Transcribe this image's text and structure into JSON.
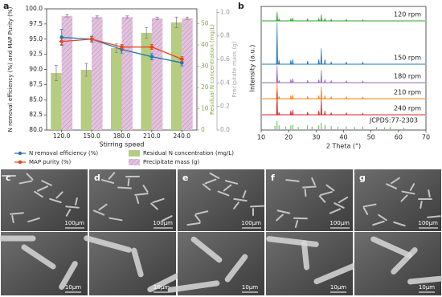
{
  "chart_data": [
    {
      "type": "combo",
      "panel_label": "a",
      "categories": [
        "120.0",
        "150.0",
        "180.0",
        "210.0",
        "240.0"
      ],
      "xlabel": "Stirring speed",
      "ylabel": "N removal efficiency (%) and MAP Purity (%)",
      "y2label": "Residual N concentration (mg/L)",
      "y3label": "Precipitate mass (g)",
      "ylim": [
        80,
        100
      ],
      "yticks": [
        {
          "value": 80,
          "label": "80.0"
        },
        {
          "value": 82.5,
          "label": "82.5"
        },
        {
          "value": 85,
          "label": "85.0"
        },
        {
          "value": 87.5,
          "label": "87.5"
        },
        {
          "value": 90,
          "label": "90.0"
        },
        {
          "value": 92.5,
          "label": "92.5"
        },
        {
          "value": 95,
          "label": "95.0"
        },
        {
          "value": 97.5,
          "label": "97.5"
        },
        {
          "value": 100,
          "label": "100.0"
        }
      ],
      "y2lim": [
        0,
        57
      ],
      "y2ticks": [
        0,
        10,
        20,
        30,
        40,
        50
      ],
      "y3lim": [
        0,
        1.03
      ],
      "y3ticks": [
        {
          "value": 0,
          "label": "0.0"
        },
        {
          "value": 0.2,
          "label": "0.2"
        },
        {
          "value": 0.4,
          "label": "0.4"
        },
        {
          "value": 0.6,
          "label": "0.6"
        },
        {
          "value": 0.8,
          "label": "0.8"
        },
        {
          "value": 1,
          "label": "1.0"
        }
      ],
      "series": [
        {
          "name": "Residual N concentration (mg/L)",
          "type": "bar",
          "axis": "y2",
          "color": "#b6cc7e",
          "values": [
            26.8,
            28.3,
            38.5,
            45.7,
            50.6
          ],
          "errors": [
            3.6,
            3.0,
            2.0,
            2.5,
            2.5
          ]
        },
        {
          "name": "Precipitate mass (g)",
          "type": "bar",
          "axis": "y3",
          "color": "#e3c2dc",
          "values": [
            0.97,
            0.96,
            0.96,
            0.95,
            0.95
          ],
          "errors": [
            0.01,
            0.01,
            0.01,
            0.01,
            0.01
          ]
        },
        {
          "name": "N removal efficiency (%)",
          "type": "line",
          "color": "#1f77b4",
          "values": [
            95.3,
            95.0,
            93.3,
            92.1,
            91.1
          ],
          "errors": [
            1.3,
            0.5,
            0.6,
            0.5,
            0.5
          ]
        },
        {
          "name": "MAP purity (%)",
          "type": "line",
          "color": "#e8441e",
          "values": [
            94.6,
            95.0,
            93.7,
            93.7,
            91.7
          ],
          "errors": [
            0.5,
            0.4,
            0.4,
            0.4,
            0.4
          ]
        }
      ]
    },
    {
      "type": "xrd",
      "panel_label": "b",
      "xlabel": "2 Theta (°)",
      "ylabel": "Intensity (a.u.)",
      "xlim": [
        10,
        70
      ],
      "xticks": [
        10,
        20,
        30,
        40,
        50,
        60,
        70
      ],
      "series": [
        {
          "name": "120 rpm",
          "color": "#2ca02c",
          "x": [
            15.8,
            16.5,
            20.8,
            21.5,
            26.9,
            31.0,
            31.9,
            33.2,
            35.5,
            41.0,
            47.0
          ],
          "values": [
            0.22,
            0.05,
            0.06,
            0.07,
            0.05,
            0.06,
            0.15,
            0.06,
            0.04,
            0.04,
            0.03
          ]
        },
        {
          "name": "150 rpm",
          "color": "#1f77b4",
          "x": [
            15.8,
            16.5,
            20.8,
            21.5,
            26.9,
            31.0,
            31.9,
            33.2,
            35.5,
            41.0,
            47.0
          ],
          "values": [
            1.0,
            0.1,
            0.1,
            0.12,
            0.08,
            0.12,
            0.38,
            0.12,
            0.06,
            0.06,
            0.05
          ]
        },
        {
          "name": "180 rpm",
          "color": "#9467bd",
          "x": [
            15.8,
            16.5,
            20.8,
            21.5,
            26.9,
            31.0,
            31.9,
            33.2,
            35.5,
            41.0,
            47.0
          ],
          "values": [
            0.42,
            0.06,
            0.08,
            0.1,
            0.06,
            0.08,
            0.3,
            0.08,
            0.05,
            0.05,
            0.04
          ]
        },
        {
          "name": "210 rpm",
          "color": "#ff7f0e",
          "x": [
            15.8,
            16.5,
            20.8,
            21.5,
            26.9,
            31.0,
            31.9,
            33.2,
            35.5,
            41.0,
            47.0
          ],
          "values": [
            0.4,
            0.06,
            0.08,
            0.1,
            0.06,
            0.08,
            0.3,
            0.08,
            0.05,
            0.05,
            0.04
          ]
        },
        {
          "name": "240 rpm",
          "color": "#d62728",
          "x": [
            15.8,
            16.5,
            20.8,
            21.5,
            26.9,
            31.0,
            31.9,
            33.2,
            35.5,
            41.0,
            47.0
          ],
          "values": [
            0.55,
            0.06,
            0.1,
            0.12,
            0.07,
            0.1,
            0.4,
            0.1,
            0.05,
            0.05,
            0.04
          ]
        }
      ],
      "reference": {
        "name": "JCPDS:77-2303",
        "color": "#2ca02c",
        "x": [
          15.0,
          15.8,
          16.5,
          19.0,
          20.8,
          21.5,
          23.5,
          26.9,
          28.5,
          31.0,
          31.9,
          33.2,
          35.5,
          38.0,
          41.0,
          44.0,
          47.0,
          52.0,
          55.0,
          57.0,
          62.0
        ],
        "values": [
          0.1,
          0.25,
          0.12,
          0.08,
          0.12,
          0.14,
          0.07,
          0.12,
          0.08,
          0.12,
          0.2,
          0.14,
          0.1,
          0.08,
          0.09,
          0.07,
          0.08,
          0.06,
          0.06,
          0.07,
          0.05
        ]
      }
    }
  ],
  "images": [
    {
      "label": "c",
      "scale_top": "100μm",
      "scale_bottom": "10μm"
    },
    {
      "label": "d",
      "scale_top": "100μm",
      "scale_bottom": "10μm"
    },
    {
      "label": "e",
      "scale_top": "100μm",
      "scale_bottom": "10μm"
    },
    {
      "label": "f",
      "scale_top": "100μm",
      "scale_bottom": "10μm"
    },
    {
      "label": "g",
      "scale_top": "100μm",
      "scale_bottom": "10μm"
    }
  ]
}
